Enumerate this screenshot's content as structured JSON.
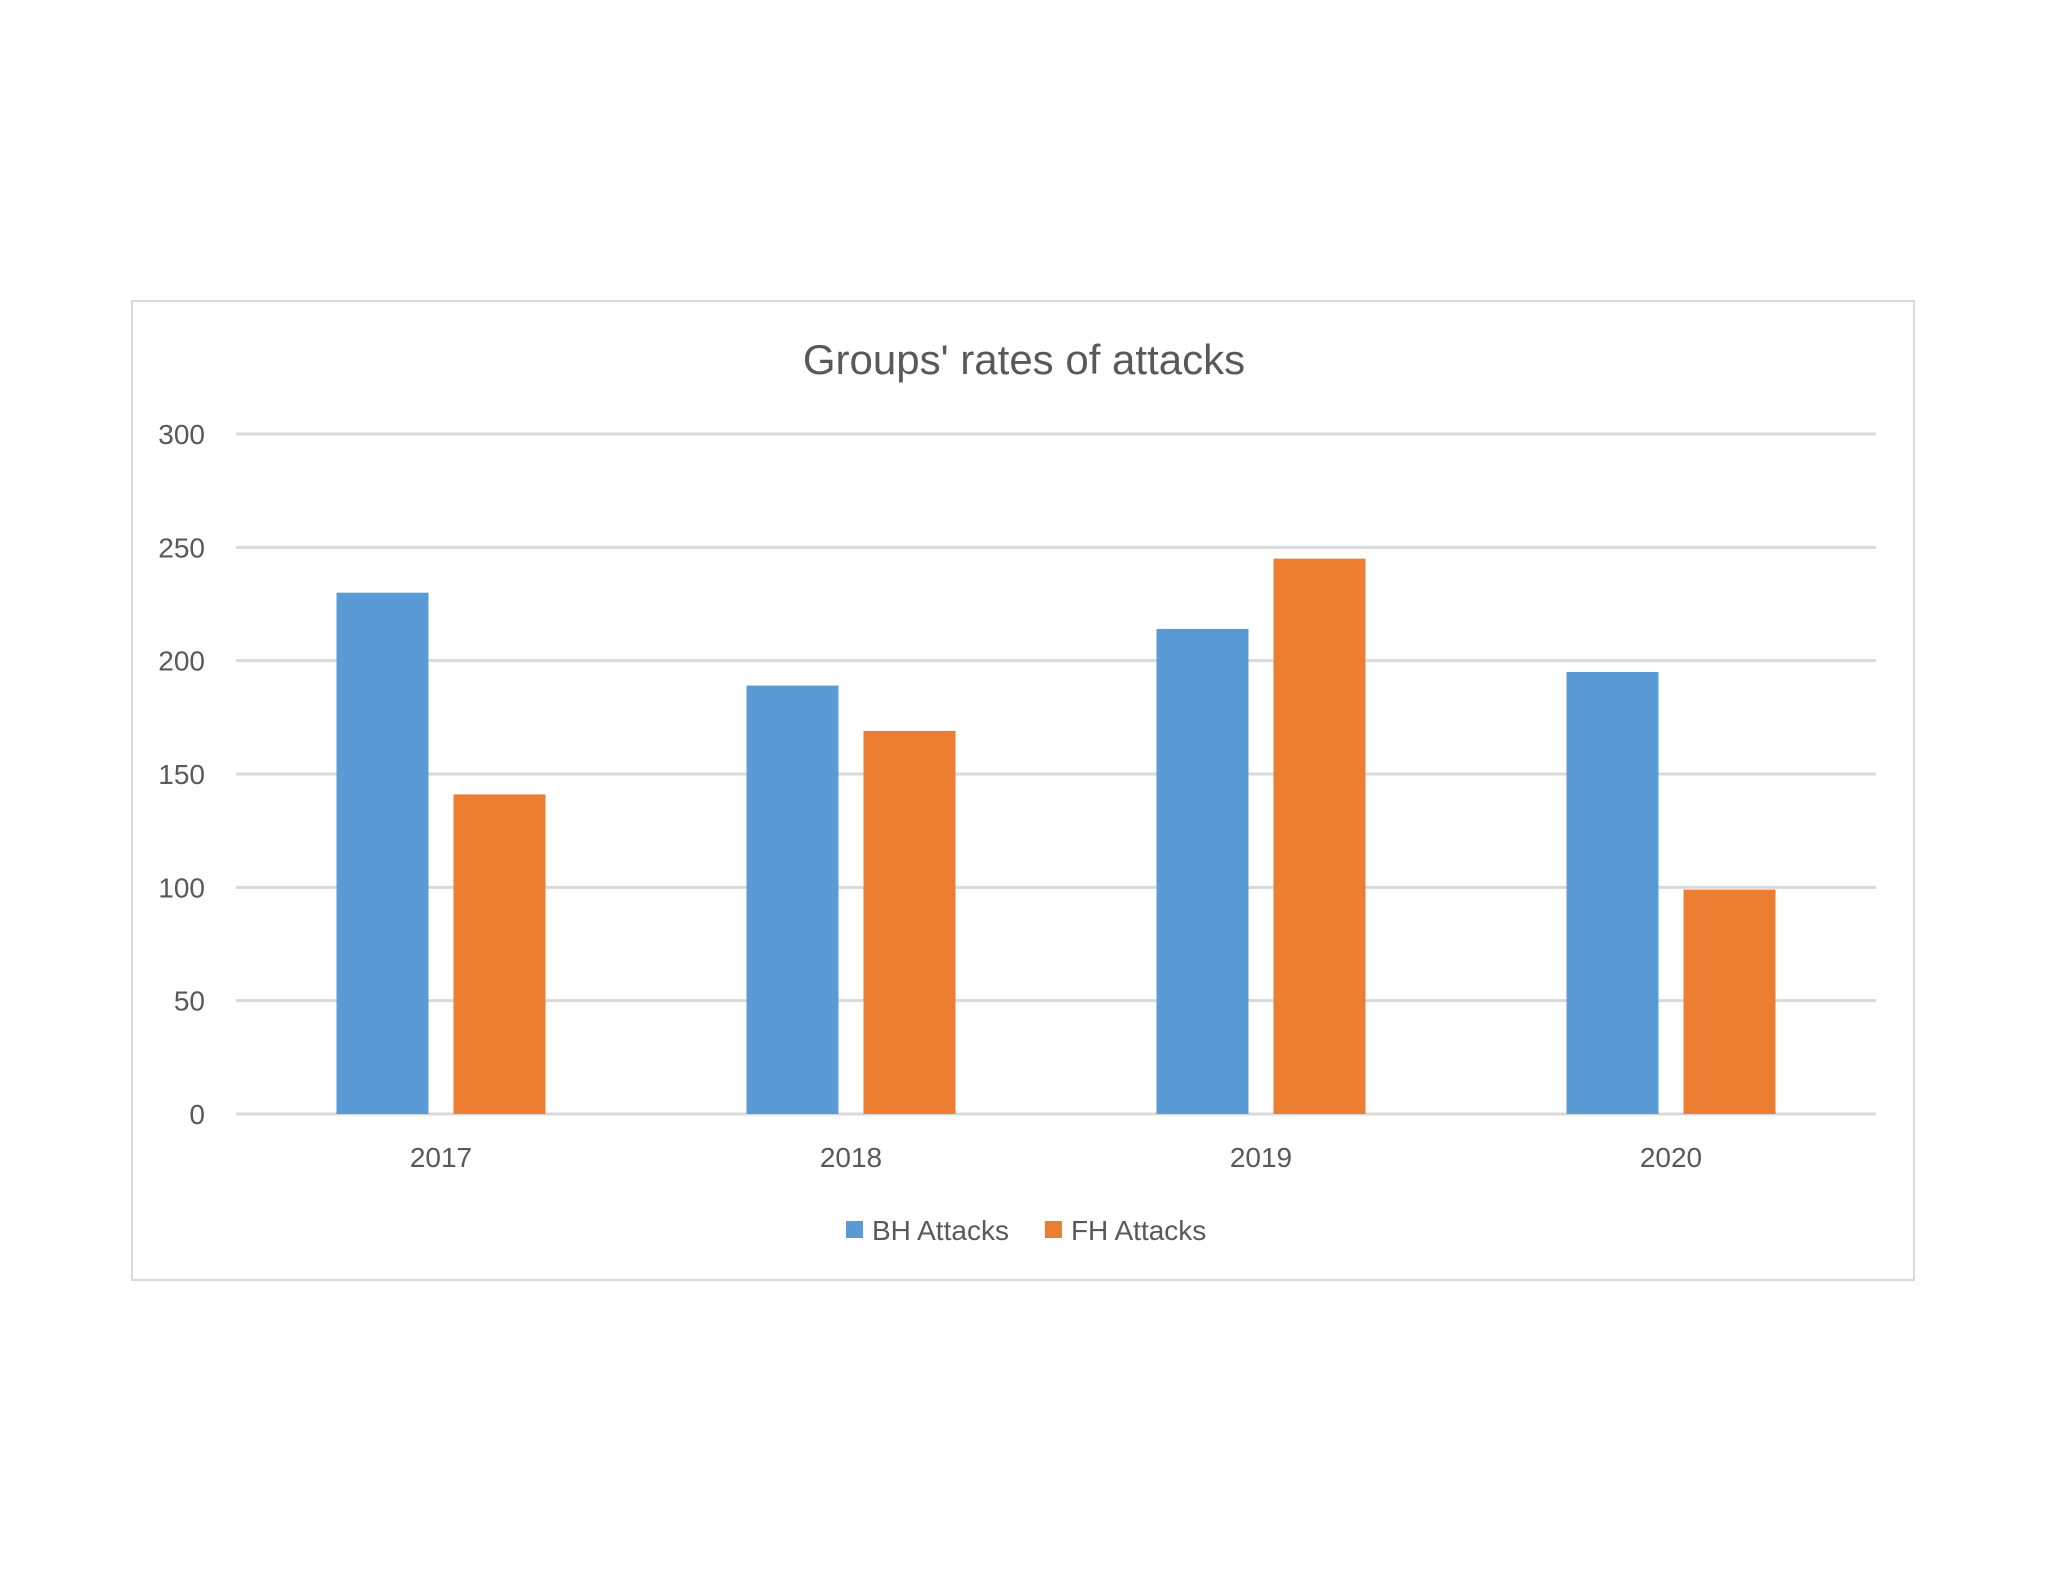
{
  "chart_data": {
    "type": "bar",
    "title": "Groups' rates of attacks",
    "categories": [
      "2017",
      "2018",
      "2019",
      "2020"
    ],
    "series": [
      {
        "name": "BH Attacks",
        "color": "#5B9BD5",
        "values": [
          230,
          189,
          214,
          195
        ]
      },
      {
        "name": "FH Attacks",
        "color": "#ED7D31",
        "values": [
          141,
          169,
          245,
          99
        ]
      }
    ],
    "ylim": [
      0,
      300
    ],
    "yticks": [
      0,
      50,
      100,
      150,
      200,
      250,
      300
    ],
    "grid": true,
    "legend": "bottom",
    "xlabel": "",
    "ylabel": ""
  }
}
